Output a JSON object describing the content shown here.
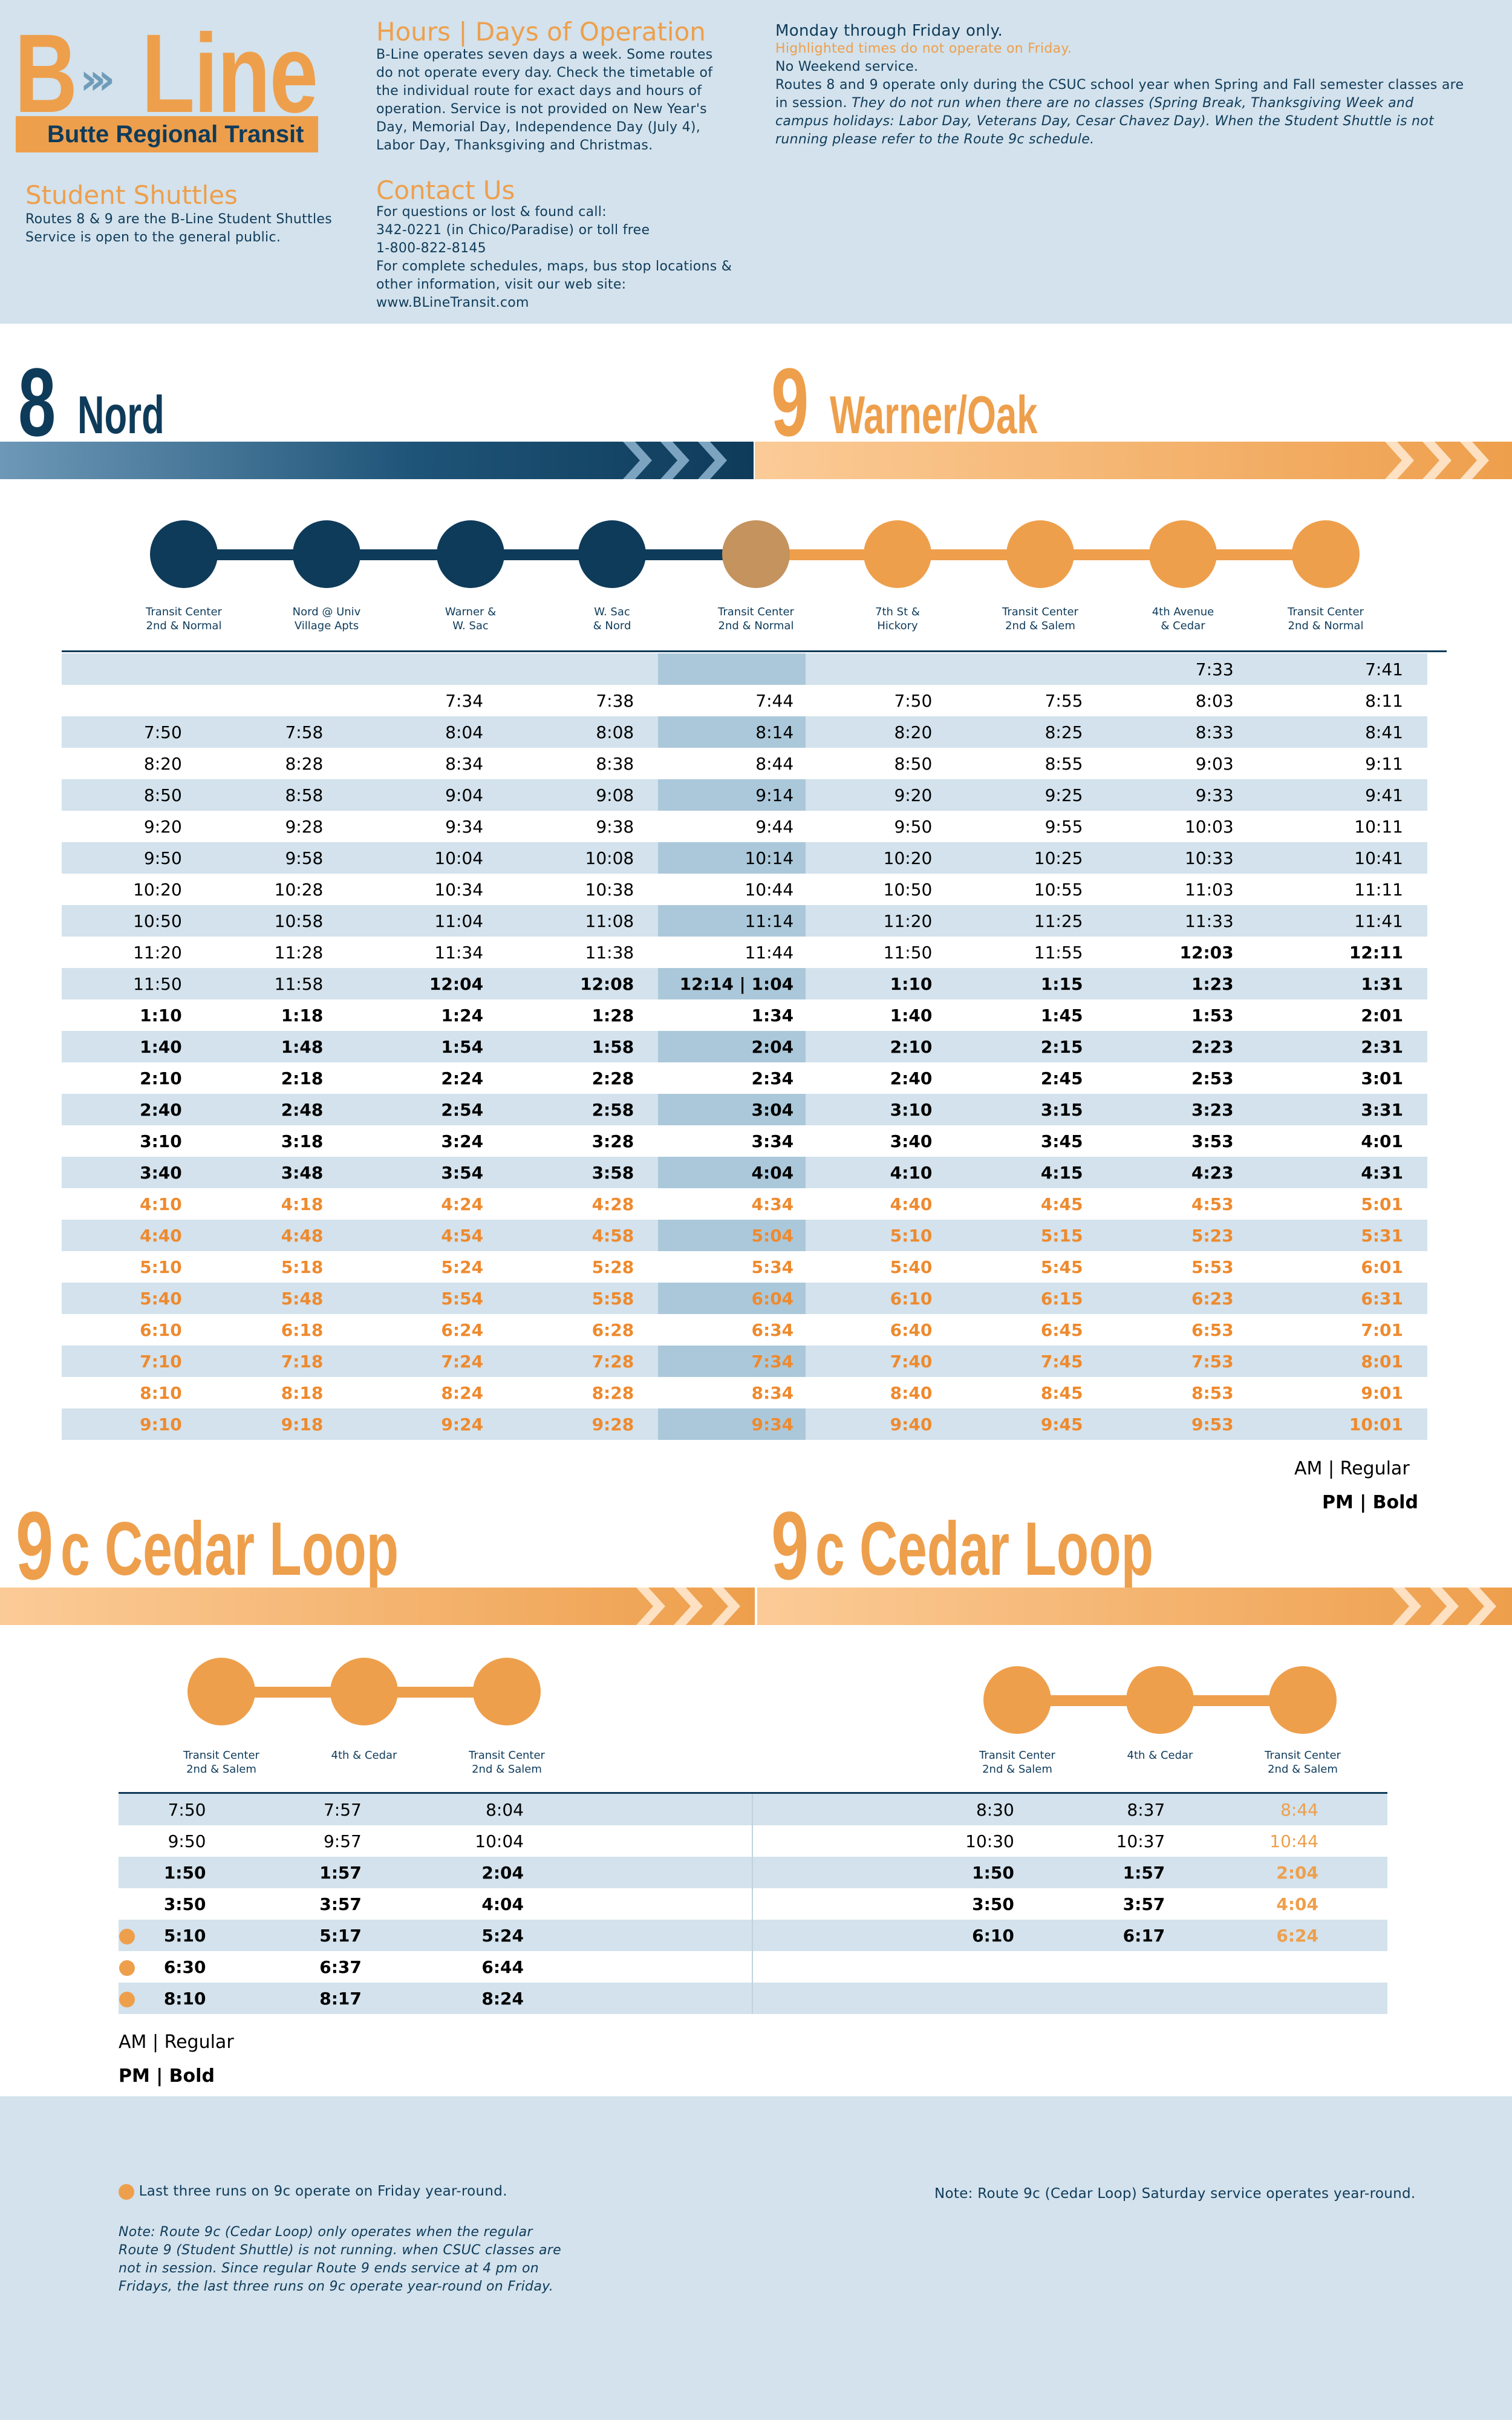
{
  "header": {
    "logo_b": "B",
    "logo_chevrons": "›››",
    "logo_line": "Line",
    "brand_subtitle": "Butte Regional Transit",
    "student_shuttles": {
      "title": "Student Shuttles",
      "text": "Routes 8 & 9 are the B-Line Student Shuttles Service is open to the general public."
    },
    "hours": {
      "title": "Hours | Days of Operation",
      "text": "B-Line operates seven days a week. Some routes do not operate every day. Check the timetable of the individual route for exact days and hours of operation. Service is not provided on New Year's Day, Memorial Day, Independence Day (July 4), Labor Day, Thanksgiving and Christmas."
    },
    "contact": {
      "title": "Contact Us",
      "line1": "For questions or lost & found call:",
      "line2": "342-0221 (in Chico/Paradise) or toll free",
      "line3": "1-800-822-8145",
      "line4": "For complete schedules, maps, bus stop locations & other information, visit our web site:",
      "line5": "www.BLineTransit.com"
    },
    "operation": {
      "line1": "Monday through Friday only.",
      "line2": "Highlighted times do not operate on Friday.",
      "line3": "No Weekend service.",
      "line4": "Routes 8 and 9 operate only during the CSUC school year when Spring and Fall semester classes are in session.",
      "line4_italic": "They do not run when there are no classes (Spring Break, Thanksgiving Week and campus holidays: Labor Day, Veterans Day, Cesar Chavez Day). When the Student Shuttle is not running please refer to the Route 9c schedule."
    }
  },
  "route8": {
    "number": "8",
    "name": "Nord"
  },
  "route9": {
    "number": "9",
    "name": "Warner/Oak"
  },
  "route89_stops": [
    "Transit Center\n2nd & Normal",
    "Nord @ Univ\nVillage Apts",
    "Warner &\nW. Sac",
    "W. Sac\n& Nord",
    "Transit Center\n2nd & Normal",
    "7th St &\nHickory",
    "Transit Center\n2nd & Salem",
    "4th Avenue\n& Cedar",
    "Transit Center\n2nd & Normal"
  ],
  "route89_rows": [
    [
      "",
      "",
      "",
      "",
      "",
      "",
      "",
      "7:33",
      "7:41"
    ],
    [
      "",
      "",
      "7:34",
      "7:38",
      "7:44",
      "7:50",
      "7:55",
      "8:03",
      "8:11"
    ],
    [
      "7:50",
      "7:58",
      "8:04",
      "8:08",
      "8:14",
      "8:20",
      "8:25",
      "8:33",
      "8:41"
    ],
    [
      "8:20",
      "8:28",
      "8:34",
      "8:38",
      "8:44",
      "8:50",
      "8:55",
      "9:03",
      "9:11"
    ],
    [
      "8:50",
      "8:58",
      "9:04",
      "9:08",
      "9:14",
      "9:20",
      "9:25",
      "9:33",
      "9:41"
    ],
    [
      "9:20",
      "9:28",
      "9:34",
      "9:38",
      "9:44",
      "9:50",
      "9:55",
      "10:03",
      "10:11"
    ],
    [
      "9:50",
      "9:58",
      "10:04",
      "10:08",
      "10:14",
      "10:20",
      "10:25",
      "10:33",
      "10:41"
    ],
    [
      "10:20",
      "10:28",
      "10:34",
      "10:38",
      "10:44",
      "10:50",
      "10:55",
      "11:03",
      "11:11"
    ],
    [
      "10:50",
      "10:58",
      "11:04",
      "11:08",
      "11:14",
      "11:20",
      "11:25",
      "11:33",
      "11:41"
    ],
    [
      "11:20",
      "11:28",
      "11:34",
      "11:38",
      "11:44",
      "11:50",
      "11:55",
      "12:03",
      "12:11"
    ],
    [
      "11:50",
      "11:58",
      "12:04",
      "12:08",
      "12:14 | 1:04",
      "1:10",
      "1:15",
      "1:23",
      "1:31"
    ],
    [
      "1:10",
      "1:18",
      "1:24",
      "1:28",
      "1:34",
      "1:40",
      "1:45",
      "1:53",
      "2:01"
    ],
    [
      "1:40",
      "1:48",
      "1:54",
      "1:58",
      "2:04",
      "2:10",
      "2:15",
      "2:23",
      "2:31"
    ],
    [
      "2:10",
      "2:18",
      "2:24",
      "2:28",
      "2:34",
      "2:40",
      "2:45",
      "2:53",
      "3:01"
    ],
    [
      "2:40",
      "2:48",
      "2:54",
      "2:58",
      "3:04",
      "3:10",
      "3:15",
      "3:23",
      "3:31"
    ],
    [
      "3:10",
      "3:18",
      "3:24",
      "3:28",
      "3:34",
      "3:40",
      "3:45",
      "3:53",
      "4:01"
    ],
    [
      "3:40",
      "3:48",
      "3:54",
      "3:58",
      "4:04",
      "4:10",
      "4:15",
      "4:23",
      "4:31"
    ],
    [
      "4:10",
      "4:18",
      "4:24",
      "4:28",
      "4:34",
      "4:40",
      "4:45",
      "4:53",
      "5:01"
    ],
    [
      "4:40",
      "4:48",
      "4:54",
      "4:58",
      "5:04",
      "5:10",
      "5:15",
      "5:23",
      "5:31"
    ],
    [
      "5:10",
      "5:18",
      "5:24",
      "5:28",
      "5:34",
      "5:40",
      "5:45",
      "5:53",
      "6:01"
    ],
    [
      "5:40",
      "5:48",
      "5:54",
      "5:58",
      "6:04",
      "6:10",
      "6:15",
      "6:23",
      "6:31"
    ],
    [
      "6:10",
      "6:18",
      "6:24",
      "6:28",
      "6:34",
      "6:40",
      "6:45",
      "6:53",
      "7:01"
    ],
    [
      "7:10",
      "7:18",
      "7:24",
      "7:28",
      "7:34",
      "7:40",
      "7:45",
      "7:53",
      "8:01"
    ],
    [
      "8:10",
      "8:18",
      "8:24",
      "8:28",
      "8:34",
      "8:40",
      "8:45",
      "8:53",
      "9:01"
    ],
    [
      "9:10",
      "9:18",
      "9:24",
      "9:28",
      "9:34",
      "9:40",
      "9:45",
      "9:53",
      "10:01"
    ]
  ],
  "legend": {
    "am": "AM  |  Regular",
    "pm": "PM  |  Bold"
  },
  "route9c_left": {
    "number": "9",
    "name": "c Cedar Loop",
    "stops": [
      "Transit Center\n2nd & Salem",
      "4th & Cedar",
      "Transit Center\n2nd & Salem"
    ],
    "rows": [
      [
        "7:50",
        "7:57",
        "8:04"
      ],
      [
        "9:50",
        "9:57",
        "10:04"
      ],
      [
        "1:50",
        "1:57",
        "2:04"
      ],
      [
        "3:50",
        "3:57",
        "4:04"
      ],
      [
        "5:10",
        "5:17",
        "5:24"
      ],
      [
        "6:30",
        "6:37",
        "6:44"
      ],
      [
        "8:10",
        "8:17",
        "8:24"
      ]
    ]
  },
  "route9c_right": {
    "number": "9",
    "name": "c Cedar Loop",
    "stops": [
      "Transit Center\n2nd & Salem",
      "4th & Cedar",
      "Transit Center\n2nd & Salem"
    ],
    "rows": [
      [
        "8:30",
        "8:37",
        "8:44"
      ],
      [
        "10:30",
        "10:37",
        "10:44"
      ],
      [
        "1:50",
        "1:57",
        "2:04"
      ],
      [
        "3:50",
        "3:57",
        "4:04"
      ],
      [
        "6:10",
        "6:17",
        "6:24"
      ]
    ]
  },
  "footer": {
    "friday_note": "Last three runs on 9c operate on Friday year-round.",
    "note_left": "Note: Route 9c (Cedar Loop) only operates when the regular Route 9 (Student Shuttle) is not running. when CSUC classes are not in session. Since regular Route 9 ends service at 4 pm on Fridays, the last three runs on 9c operate year-round on Friday.",
    "note_right": "Note: Route 9c (Cedar Loop) Saturday service operates year-round."
  },
  "colors": {
    "navy": "#0f3b5a",
    "orange": "#ee9f4c",
    "pm_orange": "#ee8a2e",
    "band": "#d3e2ec",
    "highlight": "#abc8da",
    "stop9": "#c4935e"
  }
}
